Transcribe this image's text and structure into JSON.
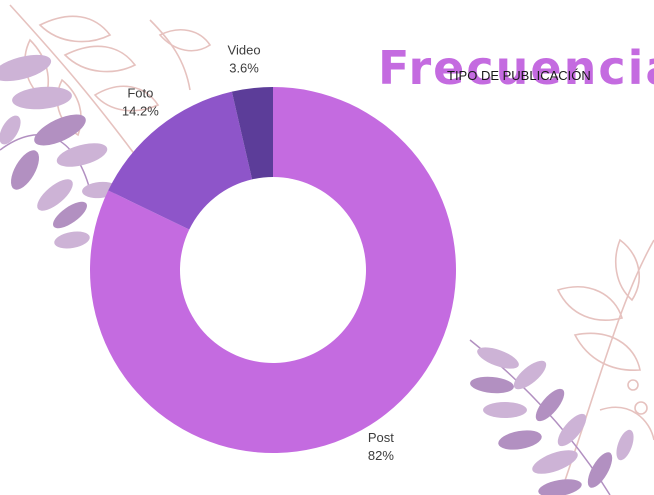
{
  "banner": {
    "title": "Frecuencia",
    "subtitle": "TIPO DE PUBLICACIÓN"
  },
  "colors": {
    "post": "#c46be0",
    "foto": "#8e55c9",
    "video": "#5c3d99",
    "leaf_light": "#cdb3d6",
    "leaf_dark": "#b290c1",
    "line_art": "#e6c2bf"
  },
  "chart_data": {
    "type": "pie",
    "style": "donut",
    "slices": [
      {
        "label": "Post",
        "value": 82,
        "display": "82%",
        "color": "#c46be0"
      },
      {
        "label": "Foto",
        "value": 14.2,
        "display": "14.2%",
        "color": "#8e55c9"
      },
      {
        "label": "Video",
        "value": 3.6,
        "display": "3.6%",
        "color": "#5c3d99"
      }
    ],
    "title": "",
    "legend": "none"
  }
}
